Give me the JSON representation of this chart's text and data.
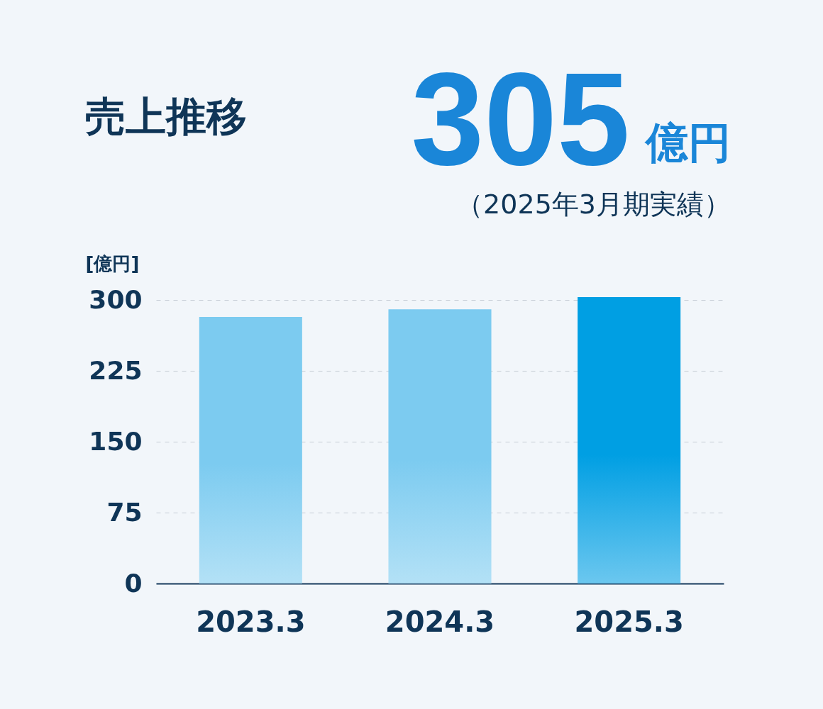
{
  "chart_data": {
    "type": "bar",
    "title": "売上推移",
    "ylabel": "[億円]",
    "annotations": [
      "305",
      "億円",
      "（2025年3月期実績）"
    ],
    "categories": [
      "2023.3",
      "2024.3",
      "2025.3"
    ],
    "values": [
      282,
      290,
      303
    ],
    "colors": [
      "#7ccbf0",
      "#7ccbf0",
      "#009fe3"
    ],
    "ylim": [
      0,
      303
    ],
    "yticks": [
      0,
      75,
      150,
      225,
      300
    ],
    "grid": "y"
  }
}
